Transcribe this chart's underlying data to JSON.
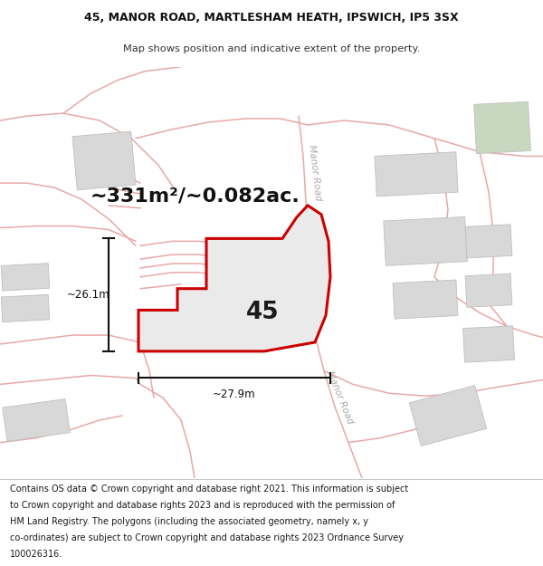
{
  "title_line1": "45, MANOR ROAD, MARTLESHAM HEATH, IPSWICH, IP5 3SX",
  "title_line2": "Map shows position and indicative extent of the property.",
  "area_text": "~331m²/~0.082ac.",
  "label_number": "45",
  "dim_vertical": "~26.1m",
  "dim_horizontal": "~27.9m",
  "road_label_top": "Manor Road",
  "road_label_bot": "Manor Road",
  "footer_lines": [
    "Contains OS data © Crown copyright and database right 2021. This information is subject",
    "to Crown copyright and database rights 2023 and is reproduced with the permission of",
    "HM Land Registry. The polygons (including the associated geometry, namely x, y",
    "co-ordinates) are subject to Crown copyright and database rights 2023 Ordnance Survey",
    "100026316."
  ],
  "map_bg": "#f7f5f5",
  "property_fill": "#eaeaea",
  "property_edge": "#cc0000",
  "road_pink": "#e8a8a8",
  "building_fill": "#d8d8d8",
  "building_edge": "#cccccc",
  "building_fill_green": "#c8d8c0",
  "dim_color": "#111111",
  "road_text_color": "#aaaaaa",
  "title_fontsize": 9.0,
  "subtitle_fontsize": 8.2,
  "area_fontsize": 16,
  "label_fontsize": 19,
  "dim_fontsize": 8.5,
  "footer_fontsize": 7.0
}
